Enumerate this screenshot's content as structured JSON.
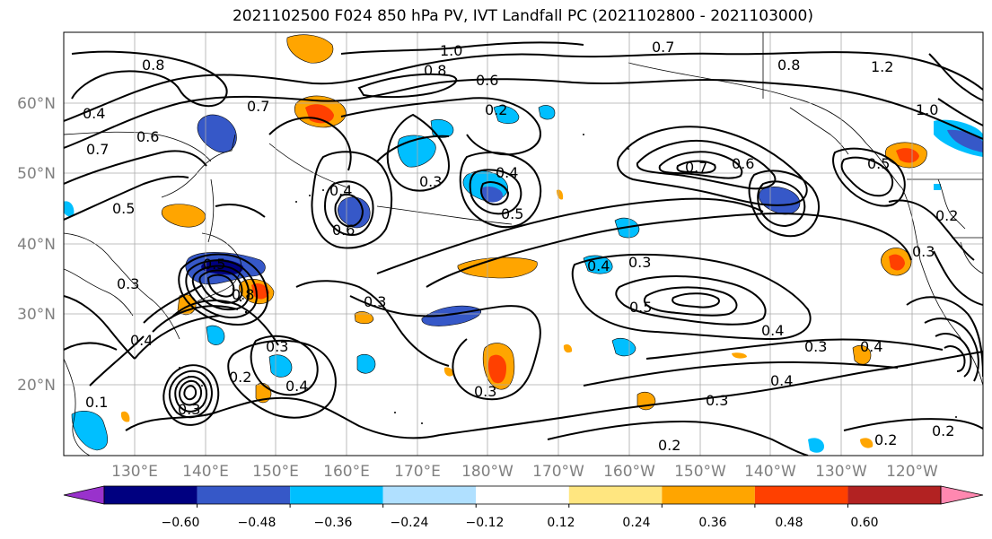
{
  "title": "2021102500 F024 850 hPa PV, IVT Landfall PC (2021102800 - 2021103000)",
  "lat_labels": [
    "60°N",
    "50°N",
    "40°N",
    "30°N",
    "20°N"
  ],
  "lon_labels": [
    "130°E",
    "140°E",
    "150°E",
    "160°E",
    "170°E",
    "180°W",
    "170°W",
    "160°W",
    "150°W",
    "140°W",
    "130°W",
    "120°W"
  ],
  "colorbar": {
    "colors": [
      "#9932cc",
      "#000080",
      "#3658c8",
      "#00bfff",
      "#b0e0ff",
      "#ffffff",
      "#ffe680",
      "#ffa500",
      "#ff4000",
      "#b22222",
      "#ff88b0"
    ],
    "tick_labels": [
      "−0.60",
      "−0.48",
      "−0.36",
      "−0.24",
      "−0.12",
      "0.12",
      "0.24",
      "0.36",
      "0.48",
      "0.60"
    ]
  },
  "contour_labels": [
    "0.8",
    "1.0",
    "0.7",
    "0.8",
    "0.6",
    "0.8",
    "1.2",
    "1.0",
    "0.4",
    "0.7",
    "0.6",
    "0.7",
    "0.2",
    "0.5",
    "0.4",
    "0.3",
    "0.4",
    "0.5",
    "0.6",
    "0.7",
    "0.6",
    "0.5",
    "0.5",
    "0.4",
    "0.3",
    "0.3",
    "0.2",
    "0.8",
    "0.3",
    "0.4",
    "0.3",
    "0.5",
    "0.4",
    "0.3",
    "0.4",
    "0.3",
    "0.4",
    "0.4",
    "0.3",
    "0.2",
    "0.2",
    "0.2",
    "0.3",
    "0.2",
    "0.3",
    "0.1"
  ]
}
